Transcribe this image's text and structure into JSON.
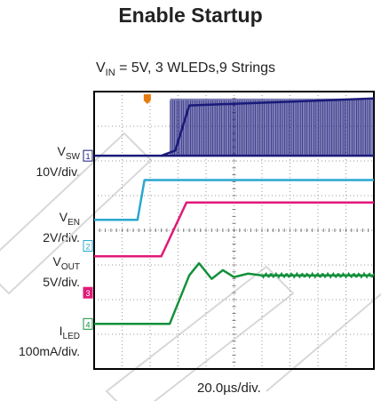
{
  "title": "Enable Startup",
  "condition": {
    "main": "V",
    "sub": "IN",
    "rest": " = 5V, 3 WLEDs,9 Strings"
  },
  "timebase": "20.0µs/div.",
  "colors": {
    "vsw": "#1a1a7a",
    "ven": "#2aa7cf",
    "vout": "#e01a78",
    "iled": "#14903c",
    "trigger": "#e87b10",
    "grid": "#9a9a9a",
    "frame": "#000000"
  },
  "channels": [
    {
      "id": "vsw",
      "name_main": "V",
      "name_sub": "SW",
      "scale": "10V/div.",
      "marker": "1"
    },
    {
      "id": "ven",
      "name_main": "V",
      "name_sub": "EN",
      "scale": "2V/div.",
      "marker": "2"
    },
    {
      "id": "vout",
      "name_main": "V",
      "name_sub": "OUT",
      "scale": "5V/div.",
      "marker": "3"
    },
    {
      "id": "iled",
      "name_main": "I",
      "name_sub": "LED",
      "scale": "100mA/div.",
      "marker": "4"
    }
  ],
  "chart_data": {
    "type": "line",
    "title": "Enable Startup",
    "xlabel": "20.0µs/div.",
    "x_divisions": 10,
    "y_divisions": 8,
    "grid": true,
    "series": [
      {
        "name": "VSW",
        "x": [
          0,
          2.4,
          2.9,
          3.4,
          10
        ],
        "y": [
          1.85,
          1.85,
          1.7,
          0.4,
          0.2
        ]
      },
      {
        "name": "VEN",
        "x": [
          0,
          1.55,
          1.8,
          10
        ],
        "y": [
          3.7,
          3.7,
          2.55,
          2.55
        ]
      },
      {
        "name": "VOUT",
        "x": [
          0,
          2.4,
          3.3,
          4.0,
          10
        ],
        "y": [
          4.75,
          4.75,
          3.2,
          3.2,
          3.2
        ]
      },
      {
        "name": "ILED",
        "x": [
          0,
          2.7,
          3.4,
          3.75,
          4.2,
          4.6,
          5.0,
          5.5,
          6.0,
          10
        ],
        "y": [
          6.7,
          6.7,
          5.3,
          4.95,
          5.4,
          5.15,
          5.35,
          5.25,
          5.3,
          5.3
        ]
      }
    ]
  }
}
